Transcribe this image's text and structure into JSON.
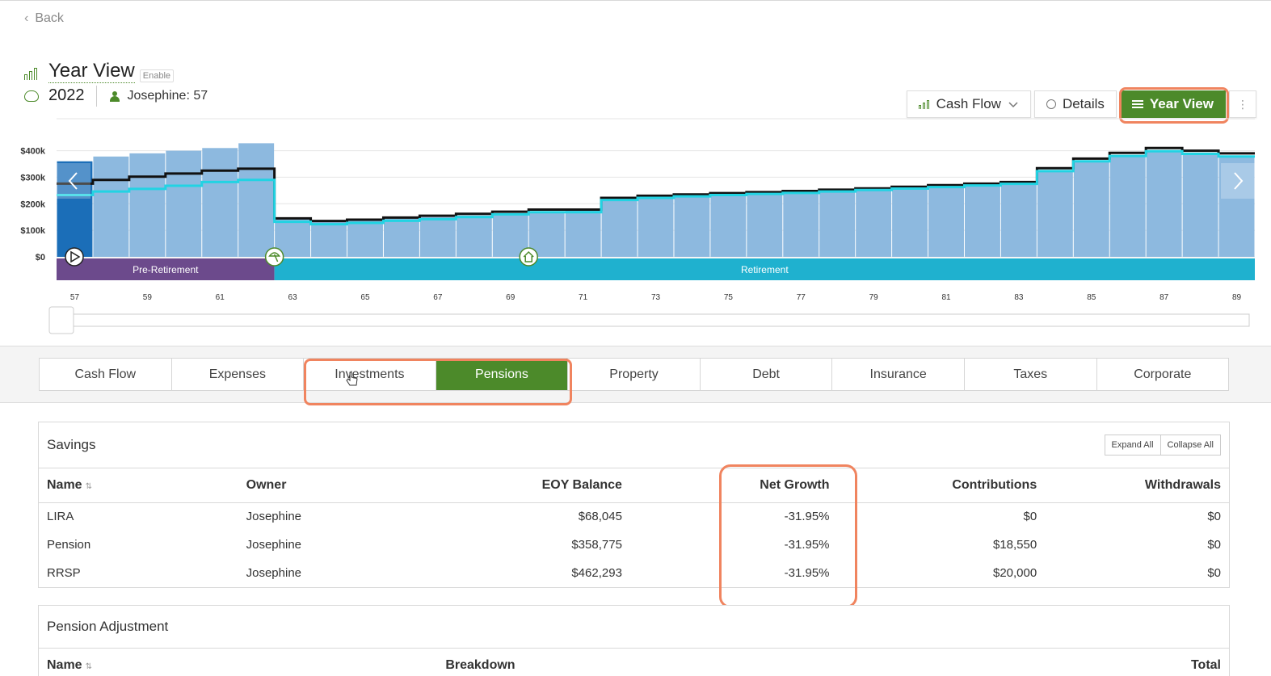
{
  "nav": {
    "back_label": "Back"
  },
  "header": {
    "title": "Year View",
    "enable_tooltip": "Enable",
    "year": "2022",
    "person_label": "Josephine: 57"
  },
  "toolbar": {
    "cashflow_label": "Cash Flow",
    "details_label": "Details",
    "yearview_label": "Year View"
  },
  "colors": {
    "accent_green": "#4c8a2a",
    "highlight": "#f0845f",
    "bar": "#8db9df",
    "bar_selected": "#1b6eb8",
    "pre_retirement": "#6c4a8c",
    "retirement": "#1fb1cf",
    "line_black": "#111111",
    "line_cyan": "#22d3e3"
  },
  "chart_data": {
    "type": "bar",
    "x": [
      57,
      58,
      59,
      60,
      61,
      62,
      63,
      64,
      65,
      66,
      67,
      68,
      69,
      70,
      71,
      72,
      73,
      74,
      75,
      76,
      77,
      78,
      79,
      80,
      81,
      82,
      83,
      84,
      85,
      86,
      87,
      88,
      89
    ],
    "x_tick_labels": [
      "57",
      "59",
      "61",
      "63",
      "65",
      "67",
      "69",
      "71",
      "73",
      "75",
      "77",
      "79",
      "81",
      "83",
      "85",
      "87",
      "89"
    ],
    "y_tick_labels": [
      "$400k",
      "$300k",
      "$200k",
      "$100k",
      "$0"
    ],
    "ylim": [
      0,
      420000
    ],
    "selected_x": 57,
    "series": [
      {
        "type": "bar",
        "values": [
          360000,
          378000,
          390000,
          400000,
          410000,
          428000,
          148000,
          132000,
          136000,
          144000,
          150000,
          156000,
          163000,
          172000,
          175000,
          210000,
          220000,
          226000,
          232000,
          236000,
          240000,
          245000,
          250000,
          256000,
          262000,
          268000,
          274000,
          320000,
          358000,
          378000,
          395000,
          385000,
          380000
        ]
      },
      {
        "type": "step",
        "color": "#111111",
        "values": [
          276000,
          290000,
          302000,
          314000,
          325000,
          332000,
          145000,
          135000,
          140000,
          148000,
          155000,
          162000,
          170000,
          178000,
          178000,
          222000,
          230000,
          235000,
          240000,
          244000,
          248000,
          253000,
          258000,
          264000,
          270000,
          276000,
          282000,
          334000,
          370000,
          392000,
          410000,
          400000,
          390000
        ]
      },
      {
        "type": "step",
        "color": "#22d3e3",
        "values": [
          233000,
          246000,
          256000,
          268000,
          282000,
          290000,
          132000,
          123000,
          128000,
          136000,
          142000,
          150000,
          160000,
          168000,
          168000,
          214000,
          222000,
          228000,
          233000,
          237000,
          241000,
          246000,
          252000,
          257000,
          263000,
          269000,
          275000,
          323000,
          360000,
          380000,
          398000,
          388000,
          378000
        ]
      }
    ],
    "phases": [
      {
        "label": "Pre-Retirement",
        "from": 57,
        "to": 63
      },
      {
        "label": "Retirement",
        "from": 63,
        "to": 90
      }
    ],
    "markers": [
      {
        "at": 57,
        "icon": "play-icon"
      },
      {
        "at": 63,
        "icon": "beach-umbrella-icon"
      },
      {
        "at": 70,
        "icon": "house-icon"
      }
    ]
  },
  "tabs": [
    {
      "label": "Cash Flow"
    },
    {
      "label": "Expenses"
    },
    {
      "label": "Investments"
    },
    {
      "label": "Pensions",
      "active": true
    },
    {
      "label": "Property"
    },
    {
      "label": "Debt"
    },
    {
      "label": "Insurance"
    },
    {
      "label": "Taxes"
    },
    {
      "label": "Corporate"
    }
  ],
  "savings": {
    "title": "Savings",
    "expand_all": "Expand All",
    "collapse_all": "Collapse All",
    "columns": [
      "Name",
      "Owner",
      "EOY Balance",
      "Net Growth",
      "Contributions",
      "Withdrawals"
    ],
    "rows": [
      [
        "LIRA",
        "Josephine",
        "$68,045",
        "-31.95%",
        "$0",
        "$0"
      ],
      [
        "Pension",
        "Josephine",
        "$358,775",
        "-31.95%",
        "$18,550",
        "$0"
      ],
      [
        "RRSP",
        "Josephine",
        "$462,293",
        "-31.95%",
        "$20,000",
        "$0"
      ]
    ]
  },
  "pension_adjustment": {
    "title": "Pension Adjustment",
    "columns": [
      "Name",
      "Breakdown",
      "Total"
    ]
  }
}
